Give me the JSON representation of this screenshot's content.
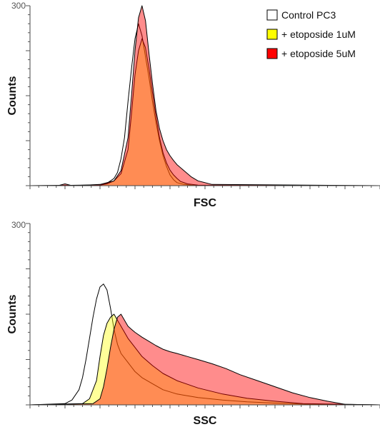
{
  "legend": [
    {
      "label": "Control PC3",
      "color": "#ffffff"
    },
    {
      "label": "+ etoposide 1uM",
      "color": "#ffff00"
    },
    {
      "label": "+ etoposide 5uM",
      "color": "#ff0000"
    }
  ],
  "chart_data": [
    {
      "type": "area",
      "xlabel": "FSC",
      "ylabel": "Counts",
      "ylim": [
        0,
        300
      ],
      "yticks": [
        "300"
      ],
      "xlim": [
        0,
        100
      ],
      "grid": false,
      "legend_position": "top-right",
      "series": [
        {
          "name": "Control PC3",
          "color": "#ffffff",
          "fill_opacity": 0.55,
          "x": [
            0,
            20,
            22,
            24,
            25,
            26,
            27,
            28,
            29,
            30,
            31,
            32,
            33,
            34,
            35,
            36,
            37,
            38,
            39,
            40,
            41,
            42,
            44,
            46,
            50,
            100
          ],
          "y": [
            0,
            1,
            4,
            12,
            22,
            45,
            80,
            140,
            195,
            245,
            270,
            250,
            215,
            180,
            140,
            105,
            75,
            50,
            32,
            18,
            10,
            5,
            2,
            1,
            0,
            0
          ]
        },
        {
          "name": "+ etoposide 1uM",
          "color": "#ffff00",
          "fill_opacity": 0.4,
          "x": [
            0,
            20,
            22,
            24,
            26,
            28,
            29,
            30,
            31,
            32,
            33,
            34,
            35,
            36,
            37,
            38,
            39,
            40,
            41,
            42,
            43,
            45,
            48,
            100
          ],
          "y": [
            0,
            1,
            3,
            8,
            20,
            60,
            120,
            185,
            225,
            245,
            230,
            195,
            155,
            115,
            80,
            55,
            38,
            26,
            18,
            12,
            7,
            3,
            1,
            0
          ]
        },
        {
          "name": "+ etoposide 5uM",
          "color": "#ff0000",
          "fill_opacity": 0.45,
          "x": [
            0,
            8,
            10,
            12,
            20,
            24,
            26,
            28,
            29,
            30,
            31,
            32,
            33,
            34,
            35,
            36,
            37,
            38,
            39,
            40,
            41,
            42,
            44,
            46,
            48,
            52,
            100
          ],
          "y": [
            0,
            0,
            3,
            0,
            2,
            8,
            25,
            80,
            150,
            225,
            280,
            300,
            275,
            220,
            170,
            125,
            95,
            75,
            60,
            50,
            42,
            35,
            25,
            15,
            8,
            2,
            0
          ]
        }
      ]
    },
    {
      "type": "area",
      "xlabel": "SSC",
      "ylabel": "Counts",
      "ylim": [
        0,
        300
      ],
      "yticks": [
        "300"
      ],
      "xlim": [
        0,
        100
      ],
      "grid": false,
      "legend_position": "none",
      "series": [
        {
          "name": "Control PC3",
          "color": "#ffffff",
          "fill_opacity": 0.55,
          "x": [
            0,
            10,
            12,
            14,
            15,
            16,
            17,
            18,
            19,
            20,
            21,
            22,
            23,
            24,
            25,
            26,
            28,
            30,
            32,
            35,
            38,
            42,
            48,
            55,
            62,
            70,
            80,
            100
          ],
          "y": [
            0,
            2,
            8,
            25,
            45,
            75,
            110,
            145,
            175,
            195,
            200,
            190,
            160,
            125,
            100,
            85,
            70,
            55,
            45,
            35,
            25,
            18,
            12,
            8,
            5,
            3,
            1,
            0
          ]
        },
        {
          "name": "+ etoposide 1uM",
          "color": "#ffff00",
          "fill_opacity": 0.4,
          "x": [
            0,
            15,
            17,
            19,
            20,
            21,
            22,
            23,
            24,
            25,
            26,
            27,
            28,
            30,
            32,
            35,
            38,
            42,
            48,
            55,
            62,
            70,
            78,
            100
          ],
          "y": [
            0,
            2,
            10,
            40,
            80,
            115,
            135,
            145,
            150,
            140,
            130,
            120,
            110,
            95,
            80,
            65,
            52,
            40,
            28,
            18,
            11,
            6,
            2,
            0
          ]
        },
        {
          "name": "+ etoposide 5uM",
          "color": "#ff0000",
          "fill_opacity": 0.45,
          "x": [
            0,
            18,
            20,
            21,
            22,
            23,
            24,
            25,
            26,
            27,
            28,
            29,
            30,
            32,
            34,
            36,
            38,
            40,
            42,
            45,
            48,
            52,
            56,
            60,
            65,
            70,
            75,
            80,
            85,
            88,
            90,
            100
          ],
          "y": [
            0,
            2,
            10,
            30,
            60,
            95,
            125,
            145,
            150,
            140,
            130,
            125,
            120,
            112,
            105,
            98,
            92,
            88,
            85,
            80,
            75,
            68,
            60,
            50,
            40,
            30,
            20,
            12,
            6,
            3,
            1,
            0
          ]
        }
      ]
    }
  ]
}
